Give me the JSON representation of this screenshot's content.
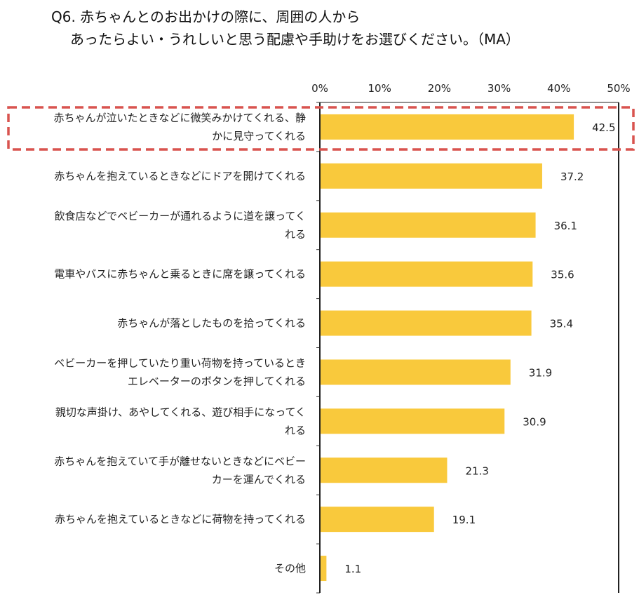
{
  "chart_data": {
    "type": "bar",
    "orientation": "horizontal",
    "title_lines": [
      "Q6. 赤ちゃんとのお出かけの際に、周囲の人から",
      "あったらよい・うれしいと思う配慮や手助けをお選びください。（MA）"
    ],
    "xlim": [
      0,
      50
    ],
    "x_ticks": [
      "0%",
      "10%",
      "20%",
      "30%",
      "40%",
      "50%"
    ],
    "bar_color": "#F9C93C",
    "highlight_color": "#D9534F",
    "categories": [
      [
        "赤ちゃんが泣いたときなどに微笑みかけてくれる、静",
        "かに見守ってくれる"
      ],
      [
        "赤ちゃんを抱えているときなどにドアを開けてくれる"
      ],
      [
        "飲食店などでベビーカーが通れるように道を譲ってく",
        "れる"
      ],
      [
        "電車やバスに赤ちゃんと乗るときに席を譲ってくれる"
      ],
      [
        "赤ちゃんが落としたものを拾ってくれる"
      ],
      [
        "ベビーカーを押していたり重い荷物を持っているとき",
        "エレベーターのボタンを押してくれる"
      ],
      [
        "親切な声掛け、あやしてくれる、遊び相手になってく",
        "れる"
      ],
      [
        "赤ちゃんを抱えていて手が離せないときなどにベビー",
        "カーを運んでくれる"
      ],
      [
        "赤ちゃんを抱えているときなどに荷物を持ってくれる"
      ],
      [
        "その他"
      ]
    ],
    "values": [
      42.5,
      37.2,
      36.1,
      35.6,
      35.4,
      31.9,
      30.9,
      21.3,
      19.1,
      1.1
    ],
    "data_labels": [
      "42.5",
      "37.2",
      "36.1",
      "35.6",
      "35.4",
      "31.9",
      "30.9",
      "21.3",
      "19.1",
      "1.1"
    ],
    "highlighted_index": 0
  }
}
